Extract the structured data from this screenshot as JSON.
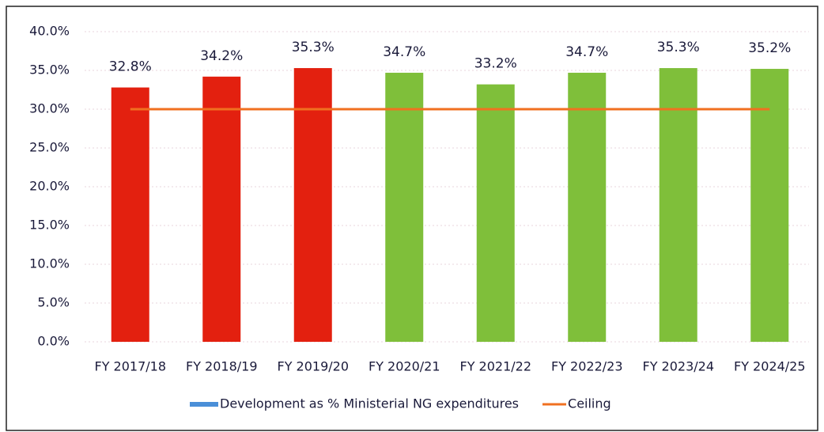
{
  "chart_data": {
    "type": "bar",
    "categories": [
      "FY 2017/18",
      "FY 2018/19",
      "FY 2019/20",
      "FY 2020/21",
      "FY 2021/22",
      "FY 2022/23",
      "FY 2023/24",
      "FY 2024/25"
    ],
    "series": [
      {
        "name": "Development as % Ministerial NG expenditures",
        "color": "#4a8fd8",
        "colors": [
          "#e3200f",
          "#e3200f",
          "#e3200f",
          "#7fbf3a",
          "#7fbf3a",
          "#7fbf3a",
          "#7fbf3a",
          "#7fbf3a"
        ],
        "values": [
          32.8,
          34.2,
          35.3,
          34.7,
          33.2,
          34.7,
          35.3,
          35.2
        ],
        "value_labels": [
          "32.8%",
          "34.2%",
          "35.3%",
          "34.7%",
          "33.2%",
          "34.7%",
          "35.3%",
          "35.2%"
        ]
      },
      {
        "name": "Ceiling",
        "type": "line",
        "color": "#f07020",
        "values": [
          30,
          30,
          30,
          30,
          30,
          30,
          30,
          30
        ]
      }
    ],
    "ylim": [
      0,
      40
    ],
    "yticks": [
      {
        "value": 0,
        "label": "0.0%"
      },
      {
        "value": 5,
        "label": "5.0%"
      },
      {
        "value": 10,
        "label": "10.0%"
      },
      {
        "value": 15,
        "label": "15.0%"
      },
      {
        "value": 20,
        "label": "20.0%"
      },
      {
        "value": 25,
        "label": "25.0%"
      },
      {
        "value": 30,
        "label": "30.0%"
      },
      {
        "value": 35,
        "label": "35.0%"
      },
      {
        "value": 40,
        "label": "40.0%"
      }
    ],
    "grid": true,
    "legend": "bottom"
  }
}
